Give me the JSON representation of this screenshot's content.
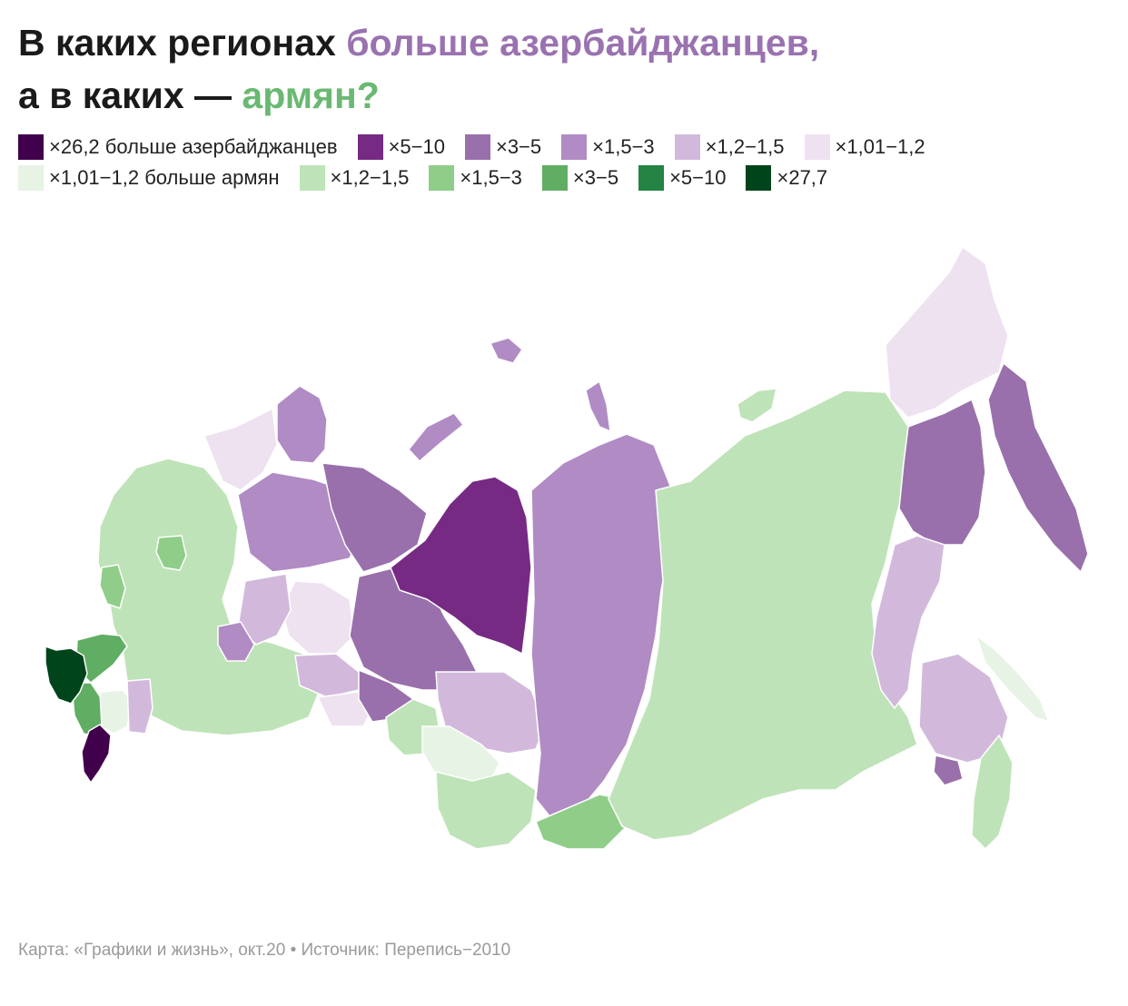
{
  "title": {
    "line1_prefix": "В каких регионах ",
    "line1_highlight": "больше азербайджанцев,",
    "line2_prefix": "а в каких — ",
    "line2_highlight": "армян?"
  },
  "colors": {
    "az_accent": "#9a72b0",
    "ar_accent": "#6ab872"
  },
  "legend": {
    "row1": [
      {
        "label": "×26,2 больше азербайджанцев",
        "color": "#40004b"
      },
      {
        "label": "×5−10",
        "color": "#762a83"
      },
      {
        "label": "×3−5",
        "color": "#9970ab"
      },
      {
        "label": "×1,5−3",
        "color": "#b08bc4"
      },
      {
        "label": "×1,2−1,5",
        "color": "#d2b9dc"
      },
      {
        "label": "×1,01−1,2",
        "color": "#eee2f0"
      }
    ],
    "row2": [
      {
        "label": "×1,01−1,2 больше армян",
        "color": "#e7f3e4"
      },
      {
        "label": "×1,2−1,5",
        "color": "#bfe3b8"
      },
      {
        "label": "×1,5−3",
        "color": "#8fcd89"
      },
      {
        "label": "×3−5",
        "color": "#5fae63"
      },
      {
        "label": "×5−10",
        "color": "#238443"
      },
      {
        "label": "×27,7",
        "color": "#00441b"
      }
    ]
  },
  "source": "Карта: «Графики и жизнь», окт.20 • Источник: Перепись−2010"
}
